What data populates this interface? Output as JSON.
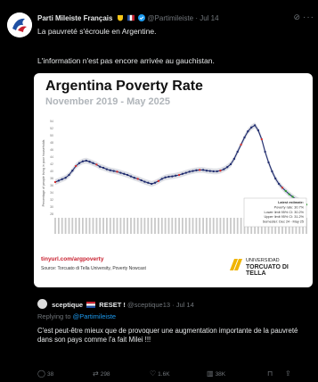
{
  "tweet": {
    "display_name": "Parti Mileiste Français",
    "handle": "@Partimileiste",
    "time": "· Jul 14",
    "text": "La pauvreté s'écroule en Argentine.",
    "quote_line": "L'information n'est pas encore arrivée au gauchistan.",
    "more_icon": "ellipsis-icon",
    "grok_icon": "grok-icon"
  },
  "chart": {
    "title": "Argentina Poverty Rate",
    "subtitle": "November 2019 - May 2025",
    "ylabel": "Percentage of people living in poor households",
    "annotation_lines": [
      "Latest estimate:",
      "Poverty rate: 30.7%",
      "Lower limit 95% CI: 30.2%",
      "Upper limit 95% CI: 31.2%",
      "Semester: Dec 24 - May 25"
    ],
    "source_url": "tinyurl.com/argpoverty",
    "source_note": "Source: Torcuato di Tella University, Poverty Nowcast",
    "logo_line1": "UNIVERSIDAD",
    "logo_line2": "TORCUATO DI TELLA",
    "colors": {
      "line": "#1f2b6e",
      "nowcast": "#d62b2b",
      "latest": "#2ca02c",
      "band": "#d5d7de"
    }
  },
  "chart_data": {
    "type": "line",
    "ylim": [
      28,
      56
    ],
    "yticks": [
      28,
      30,
      32,
      34,
      36,
      38,
      40,
      42,
      44,
      46,
      48,
      50,
      52,
      54
    ],
    "grid": false,
    "series": [
      {
        "values": [
          37.0,
          37.4,
          37.8,
          38.2,
          39.0,
          40.2,
          41.5,
          42.3,
          42.8,
          43.0,
          42.7,
          42.3,
          41.9,
          41.3,
          41.0,
          40.6,
          40.3,
          40.1,
          39.9,
          39.6,
          39.3,
          39.0,
          38.6,
          38.2,
          37.9,
          37.5,
          37.1,
          36.8,
          36.5,
          36.8,
          37.3,
          37.9,
          38.3,
          38.5,
          38.6,
          38.8,
          39.0,
          39.3,
          39.6,
          39.9,
          40.1,
          40.3,
          40.4,
          40.4,
          40.2,
          40.1,
          40.0,
          40.0,
          40.2,
          40.6,
          41.2,
          42.0,
          43.5,
          45.5,
          47.5,
          49.5,
          51.2,
          52.3,
          52.9,
          51.5,
          49.0,
          45.5,
          42.5,
          40.0,
          38.0,
          36.5,
          35.4,
          34.5,
          33.6,
          32.9,
          32.2,
          31.7,
          31.2,
          30.7
        ]
      }
    ]
  },
  "reply": {
    "display_name": "sceptique",
    "reset_label": "RESET !",
    "handle": "@sceptique13",
    "time": "· Jul 14",
    "replying_prefix": "Replying to",
    "replying_handle": "@Partimileiste",
    "text": "C'est peut-être mieux que de provoquer une augmentation importante de la pauvreté dans son pays comme l'a fait Milei !!!"
  },
  "actions": {
    "replies": "38",
    "reposts": "298",
    "likes": "1.6K",
    "views": "38K"
  }
}
